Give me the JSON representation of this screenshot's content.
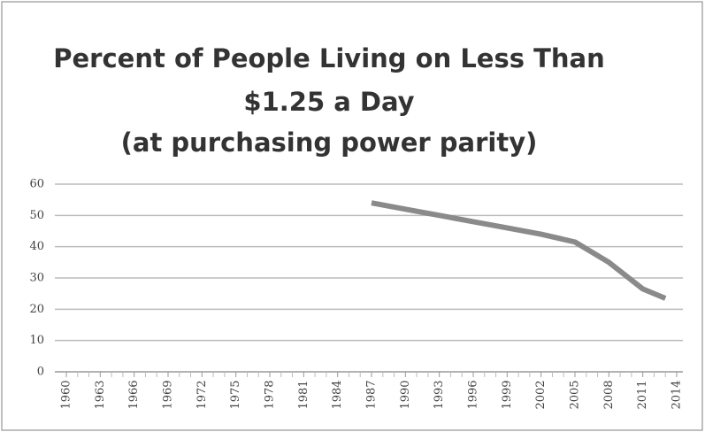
{
  "chart_data": {
    "type": "line",
    "title": [
      "Percent of People Living on Less Than",
      "$1.25 a Day",
      "(at purchasing power parity)"
    ],
    "x": [
      1987,
      1990,
      1993,
      1996,
      1999,
      2002,
      2005,
      2008,
      2011,
      2013
    ],
    "series": [
      {
        "name": "Percent",
        "color": "#8a8a8a",
        "values": [
          54,
          52,
          50,
          48,
          46,
          44,
          41.5,
          35,
          26.5,
          23.5
        ]
      }
    ],
    "xlim": [
      1960,
      2014
    ],
    "xticks": [
      1960,
      1963,
      1966,
      1969,
      1972,
      1975,
      1978,
      1981,
      1984,
      1987,
      1990,
      1993,
      1996,
      1999,
      2002,
      2005,
      2008,
      2011,
      2014
    ],
    "ylim": [
      0,
      60
    ],
    "yticks": [
      0,
      10,
      20,
      30,
      40,
      50,
      60
    ],
    "grid": true
  }
}
